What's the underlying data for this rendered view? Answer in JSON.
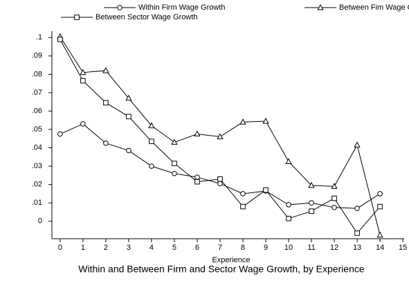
{
  "chart_data": {
    "type": "line",
    "title": "Within and Between Firm and Sector Wage Growth, by Experience",
    "x_label": "Experience",
    "x": [
      0,
      1,
      2,
      3,
      4,
      5,
      6,
      7,
      8,
      9,
      10,
      11,
      12,
      13,
      14
    ],
    "series": [
      {
        "name": "Within Firm Wage Growth",
        "color": "#000000",
        "marker": "circle",
        "values": [
          0.0475,
          0.053,
          0.0425,
          0.0385,
          0.03,
          0.026,
          0.024,
          0.0205,
          0.015,
          0.0165,
          0.009,
          0.01,
          0.0075,
          0.007,
          0.015
        ]
      },
      {
        "name": "Between Fim Wage Growth",
        "color": "#000000",
        "marker": "triangle",
        "values": [
          0.1005,
          0.081,
          0.082,
          0.067,
          0.052,
          0.043,
          0.0475,
          0.046,
          0.054,
          0.0545,
          0.0325,
          0.0195,
          0.019,
          0.0415,
          -0.0075
        ]
      },
      {
        "name": "Between Sector Wage Growth",
        "color": "#000000",
        "marker": "square",
        "values": [
          0.099,
          0.0765,
          0.0645,
          0.057,
          0.0435,
          0.0315,
          0.0215,
          0.023,
          0.008,
          0.017,
          0.0015,
          0.0055,
          0.0125,
          -0.0065,
          0.008
        ]
      }
    ],
    "xlim": [
      -0.36,
      15.3
    ],
    "xticks": [
      0,
      1,
      2,
      3,
      4,
      5,
      6,
      7,
      8,
      9,
      10,
      11,
      12,
      13,
      14,
      15
    ],
    "ylim": [
      -0.0095,
      0.1035
    ],
    "yticks": [
      {
        "value": 0.1,
        "label": ".1"
      },
      {
        "value": 0.09,
        "label": ".09"
      },
      {
        "value": 0.08,
        "label": ".08"
      },
      {
        "value": 0.07,
        "label": ".07"
      },
      {
        "value": 0.06,
        "label": ".06"
      },
      {
        "value": 0.05,
        "label": ".05"
      },
      {
        "value": 0.04,
        "label": ".04"
      },
      {
        "value": 0.03,
        "label": ".03"
      },
      {
        "value": 0.02,
        "label": ".02"
      },
      {
        "value": 0.01,
        "label": ".01"
      },
      0
    ],
    "legend": "top"
  }
}
